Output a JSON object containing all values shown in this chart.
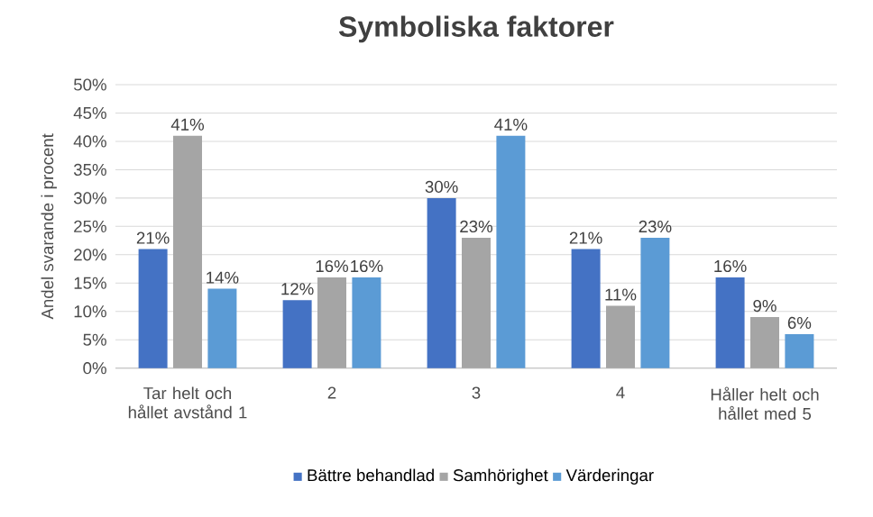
{
  "chart_data": {
    "type": "bar",
    "title": "Symboliska faktorer",
    "ylabel": "Andel svarande i procent",
    "categories": [
      "Tar helt och hållet avstånd 1",
      "2",
      "3",
      "4",
      "Håller helt och hållet med 5"
    ],
    "series": [
      {
        "name": "Bättre behandlad",
        "color": "#4472c4",
        "values": [
          21,
          12,
          30,
          21,
          16
        ],
        "value_labels": [
          "21%",
          "12%",
          "30%",
          "21%",
          "16%"
        ]
      },
      {
        "name": "Samhörighet",
        "color": "#a5a5a5",
        "values": [
          41,
          16,
          23,
          11,
          9
        ],
        "value_labels": [
          "41%",
          "16%",
          "23%",
          "11%",
          "9%"
        ]
      },
      {
        "name": "Värderingar",
        "color": "#5b9bd5",
        "values": [
          14,
          16,
          41,
          23,
          6
        ],
        "value_labels": [
          "14%",
          "16%",
          "41%",
          "23%",
          "6%"
        ]
      }
    ],
    "ylim": [
      0,
      50
    ],
    "yticks": [
      {
        "value": 0,
        "label": "0%"
      },
      {
        "value": 5,
        "label": "5%"
      },
      {
        "value": 10,
        "label": "10%"
      },
      {
        "value": 15,
        "label": "15%"
      },
      {
        "value": 20,
        "label": "20%"
      },
      {
        "value": 25,
        "label": "25%"
      },
      {
        "value": 30,
        "label": "30%"
      },
      {
        "value": 35,
        "label": "35%"
      },
      {
        "value": 40,
        "label": "40%"
      },
      {
        "value": 45,
        "label": "45%"
      },
      {
        "value": 50,
        "label": "50%"
      }
    ],
    "grid": "y",
    "legend": "bottom"
  }
}
